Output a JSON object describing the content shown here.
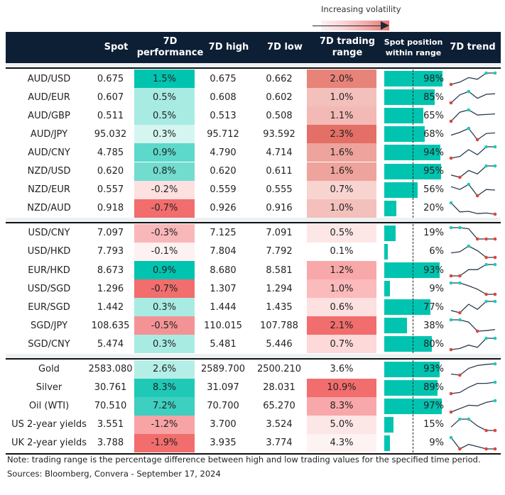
{
  "legend": {
    "label": "Increasing volatility"
  },
  "headers": {
    "spot": "Spot",
    "perf_1": "7D",
    "perf_2": "performance",
    "high": "7D high",
    "low": "7D low",
    "range_1": "7D trading",
    "range_2": "range",
    "pos_1": "Spot position",
    "pos_2": "within range",
    "trend": "7D trend"
  },
  "colors": {
    "header_bg": "#0d1f35",
    "bar": "#00c4b0",
    "max_marker": "#1ec8b8",
    "min_marker": "#e0443a",
    "sparkline": "#2a3a4e"
  },
  "groups": [
    {
      "rows": [
        {
          "pair": "AUD/USD",
          "spot": "0.675",
          "perf": "1.5%",
          "perf_color": "#00c4b0",
          "high": "0.675",
          "low": "0.662",
          "range": "2.0%",
          "range_color": "#e8837a",
          "position": 98,
          "position_label": "98%",
          "trend": [
            0,
            0.2,
            0.6,
            0.45,
            1,
            1
          ]
        },
        {
          "pair": "AUD/EUR",
          "spot": "0.607",
          "perf": "0.5%",
          "perf_color": "#a8ebe3",
          "high": "0.608",
          "low": "0.602",
          "range": "1.0%",
          "range_color": "#f4c0bc",
          "position": 85,
          "position_label": "85%",
          "trend": [
            0,
            0.7,
            1,
            0.4,
            0.75,
            0.8
          ]
        },
        {
          "pair": "AUD/GBP",
          "spot": "0.511",
          "perf": "0.5%",
          "perf_color": "#a8ebe3",
          "high": "0.513",
          "low": "0.508",
          "range": "1.1%",
          "range_color": "#f3bab5",
          "position": 65,
          "position_label": "65%",
          "trend": [
            0,
            0.8,
            1,
            0.55,
            0.6,
            0.65
          ]
        },
        {
          "pair": "AUD/JPY",
          "spot": "95.032",
          "perf": "0.3%",
          "perf_color": "#d5f5f1",
          "high": "95.712",
          "low": "93.592",
          "range": "2.3%",
          "range_color": "#e36f66",
          "position": 68,
          "position_label": "68%",
          "trend": [
            0.4,
            0.65,
            1,
            0,
            0.55,
            0.6
          ]
        },
        {
          "pair": "AUD/CNY",
          "spot": "4.785",
          "perf": "0.9%",
          "perf_color": "#5dd9cb",
          "high": "4.790",
          "low": "4.714",
          "range": "1.6%",
          "range_color": "#eea39c",
          "position": 94,
          "position_label": "94%",
          "trend": [
            0,
            0.15,
            0.75,
            0.3,
            1,
            1
          ]
        },
        {
          "pair": "NZD/USD",
          "spot": "0.620",
          "perf": "0.8%",
          "perf_color": "#72dccf",
          "high": "0.620",
          "low": "0.611",
          "range": "1.6%",
          "range_color": "#eea39c",
          "position": 95,
          "position_label": "95%",
          "trend": [
            0.2,
            0,
            0.6,
            0.3,
            1,
            1
          ]
        },
        {
          "pair": "NZD/EUR",
          "spot": "0.557",
          "perf": "-0.2%",
          "perf_color": "#fde0e0",
          "high": "0.559",
          "low": "0.555",
          "range": "0.7%",
          "range_color": "#f8d4d1",
          "position": 56,
          "position_label": "56%",
          "trend": [
            0.8,
            0.55,
            1,
            0,
            0.55,
            0.5
          ]
        },
        {
          "pair": "NZD/AUD",
          "spot": "0.918",
          "perf": "-0.7%",
          "perf_color": "#f26d6d",
          "high": "0.926",
          "low": "0.916",
          "range": "1.0%",
          "range_color": "#f4c0bc",
          "position": 20,
          "position_label": "20%",
          "trend": [
            1,
            0.2,
            0.25,
            0.05,
            0.1,
            0
          ]
        }
      ]
    },
    {
      "rows": [
        {
          "pair": "USD/CNY",
          "spot": "7.097",
          "perf": "-0.3%",
          "perf_color": "#f9b7b9",
          "high": "7.125",
          "low": "7.091",
          "range": "0.5%",
          "range_color": "#fde6e6",
          "position": 19,
          "position_label": "19%",
          "trend": [
            1,
            1,
            0.9,
            0,
            0,
            0
          ]
        },
        {
          "pair": "USD/HKD",
          "spot": "7.793",
          "perf": "-0.1%",
          "perf_color": "#fef1f1",
          "high": "7.804",
          "low": "7.792",
          "range": "0.1%",
          "range_color": "#ffffff",
          "position": 6,
          "position_label": "6%",
          "trend": [
            0.4,
            0.5,
            1,
            0.6,
            0,
            0
          ]
        },
        {
          "pair": "EUR/HKD",
          "spot": "8.673",
          "perf": "0.9%",
          "perf_color": "#00c4b0",
          "high": "8.680",
          "low": "8.581",
          "range": "1.2%",
          "range_color": "#f9a8aa",
          "position": 93,
          "position_label": "93%",
          "trend": [
            0,
            0,
            0.55,
            0.55,
            1,
            1
          ]
        },
        {
          "pair": "USD/SGD",
          "spot": "1.296",
          "perf": "-0.7%",
          "perf_color": "#f26d6d",
          "high": "1.307",
          "low": "1.294",
          "range": "1.0%",
          "range_color": "#fbbabb",
          "position": 9,
          "position_label": "9%",
          "trend": [
            1,
            1,
            0.75,
            0.45,
            0,
            0
          ]
        },
        {
          "pair": "EUR/SGD",
          "spot": "1.442",
          "perf": "0.3%",
          "perf_color": "#a8ebe3",
          "high": "1.444",
          "low": "1.435",
          "range": "0.6%",
          "range_color": "#fde0e0",
          "position": 77,
          "position_label": "77%",
          "trend": [
            0.2,
            0,
            0.75,
            0.3,
            1,
            1
          ]
        },
        {
          "pair": "SGD/JPY",
          "spot": "108.635",
          "perf": "-0.5%",
          "perf_color": "#f49396",
          "high": "110.015",
          "low": "107.788",
          "range": "2.1%",
          "range_color": "#f26d6d",
          "position": 38,
          "position_label": "38%",
          "trend": [
            1,
            1,
            0.8,
            0,
            0.05,
            0.15
          ]
        },
        {
          "pair": "SGD/CNY",
          "spot": "5.474",
          "perf": "0.3%",
          "perf_color": "#a8ebe3",
          "high": "5.481",
          "low": "5.446",
          "range": "0.7%",
          "range_color": "#fdd9d9",
          "position": 80,
          "position_label": "80%",
          "trend": [
            0,
            0.1,
            0.4,
            0.2,
            1,
            1
          ]
        }
      ]
    },
    {
      "rows": [
        {
          "pair": "Gold",
          "spot": "2583.080",
          "perf": "2.6%",
          "perf_color": "#b5eee7",
          "high": "2589.700",
          "low": "2500.210",
          "range": "3.6%",
          "range_color": "#ffffff",
          "position": 93,
          "position_label": "93%",
          "trend": [
            0.1,
            0,
            0.6,
            0.85,
            0.95,
            1
          ]
        },
        {
          "pair": "Silver",
          "spot": "30.761",
          "perf": "8.3%",
          "perf_color": "#1fc9b6",
          "high": "31.097",
          "low": "28.031",
          "range": "10.9%",
          "range_color": "#f26d6d",
          "position": 89,
          "position_label": "89%",
          "trend": [
            0,
            0.1,
            0.55,
            0.9,
            0.9,
            1
          ]
        },
        {
          "pair": "Oil (WTI)",
          "spot": "70.510",
          "perf": "7.2%",
          "perf_color": "#3dcfbf",
          "high": "70.700",
          "low": "65.270",
          "range": "8.3%",
          "range_color": "#f8a8aa",
          "position": 97,
          "position_label": "97%",
          "trend": [
            0,
            0.3,
            0.6,
            0.55,
            0.85,
            1
          ]
        },
        {
          "pair": "US 2-year yields",
          "spot": "3.551",
          "perf": "-1.2%",
          "perf_color": "#f8a3a5",
          "high": "3.700",
          "low": "3.524",
          "range": "5.0%",
          "range_color": "#fde6e6",
          "position": 15,
          "position_label": "15%",
          "trend": [
            0.3,
            1,
            1,
            0.4,
            0,
            0
          ]
        },
        {
          "pair": "UK 2-year yields",
          "spot": "3.788",
          "perf": "-1.9%",
          "perf_color": "#f26d6d",
          "high": "3.935",
          "low": "3.774",
          "range": "4.3%",
          "range_color": "#fef3f3",
          "position": 9,
          "position_label": "9%",
          "trend": [
            1,
            0,
            0.4,
            0.2,
            0,
            0
          ]
        }
      ]
    }
  ],
  "footer": {
    "note": "Note: trading range is the percentage difference between high and low trading values for the specified time period.",
    "sources": "Sources: Bloomberg, Convera - September 17, 2024"
  }
}
